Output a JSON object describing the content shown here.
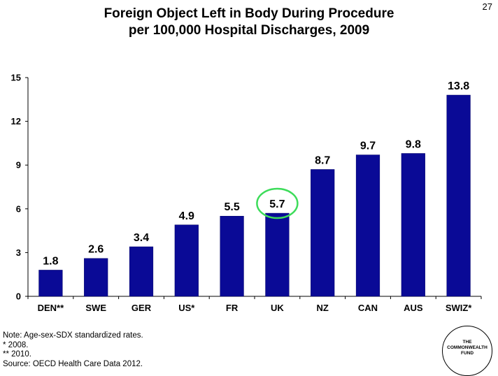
{
  "page_number": "27",
  "title": {
    "line1": "Foreign Object Left in Body During Procedure",
    "line2": "per 100,000 Hospital Discharges, 2009"
  },
  "notes": [
    "Note: Age-sex-SDX standardized rates.",
    "* 2008.",
    "** 2010.",
    "Source: OECD Health Care Data 2012."
  ],
  "logo": {
    "text": "THE\nCOMMONWEALTH\nFUND"
  },
  "colors": {
    "bar": "#0a0a96",
    "bar_stroke": "#000066",
    "highlight": "#3ddc5a",
    "axis": "#000000"
  },
  "chart_data": {
    "type": "bar",
    "categories": [
      "DEN**",
      "SWE",
      "GER",
      "US*",
      "FR",
      "UK",
      "NZ",
      "CAN",
      "AUS",
      "SWIZ*"
    ],
    "values": [
      1.8,
      2.6,
      3.4,
      4.9,
      5.5,
      5.7,
      8.7,
      9.7,
      9.8,
      13.8
    ],
    "value_labels": [
      "1.8",
      "2.6",
      "3.4",
      "4.9",
      "5.5",
      "5.7",
      "8.7",
      "9.7",
      "9.8",
      "13.8"
    ],
    "ylim": [
      0,
      15
    ],
    "yticks": [
      0,
      3,
      6,
      9,
      12,
      15
    ],
    "ytick_labels": [
      "0",
      "3",
      "6",
      "9",
      "12",
      "15"
    ],
    "highlighted_category": "UK",
    "grid": false,
    "legend": "none",
    "xlabel": "",
    "ylabel": ""
  }
}
